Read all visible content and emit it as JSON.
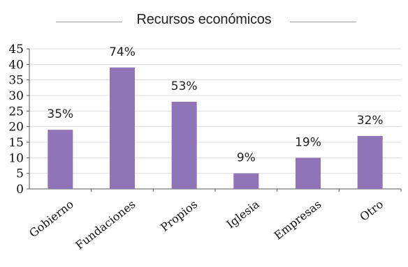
{
  "chart_data": {
    "type": "bar",
    "title": "Recursos económicos",
    "categories": [
      "Gobierno",
      "Fundaciones",
      "Propios",
      "Iglesia",
      "Empresas",
      "Otro"
    ],
    "values": [
      19,
      39,
      28,
      5,
      10,
      17
    ],
    "data_labels": [
      "35%",
      "74%",
      "53%",
      "9%",
      "19%",
      "32%"
    ],
    "xlabel": "",
    "ylabel": "",
    "ylim": [
      0,
      45
    ],
    "yticks": [
      0,
      5,
      10,
      15,
      20,
      25,
      30,
      35,
      40,
      45
    ],
    "grid": true,
    "bar_color": "#9074b8",
    "legend": "none"
  }
}
